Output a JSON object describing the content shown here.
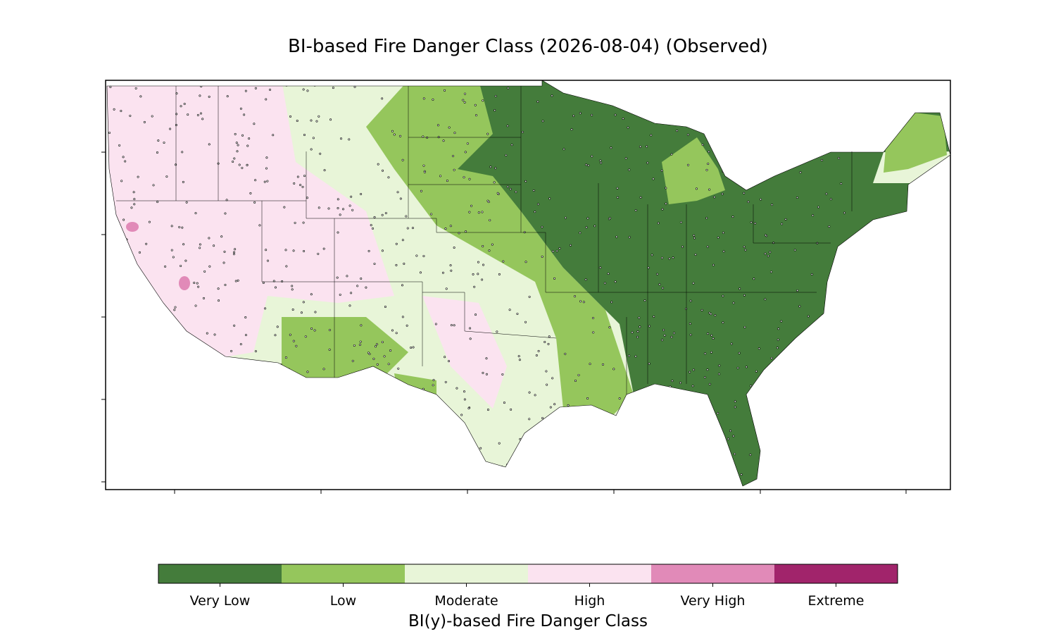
{
  "map": {
    "title": "BI-based Fire Danger Class (2026-08-04) (Observed)",
    "colorbar": {
      "label": "BI(y)-based Fire Danger Class",
      "classes": [
        {
          "name": "Very Low",
          "color": "#447c3b"
        },
        {
          "name": "Low",
          "color": "#95c65c"
        },
        {
          "name": "Moderate",
          "color": "#e8f5d8"
        },
        {
          "name": "High",
          "color": "#fbe3f0"
        },
        {
          "name": "Very High",
          "color": "#e18ab8"
        },
        {
          "name": "Extreme",
          "color": "#a1246b"
        }
      ]
    }
  }
}
